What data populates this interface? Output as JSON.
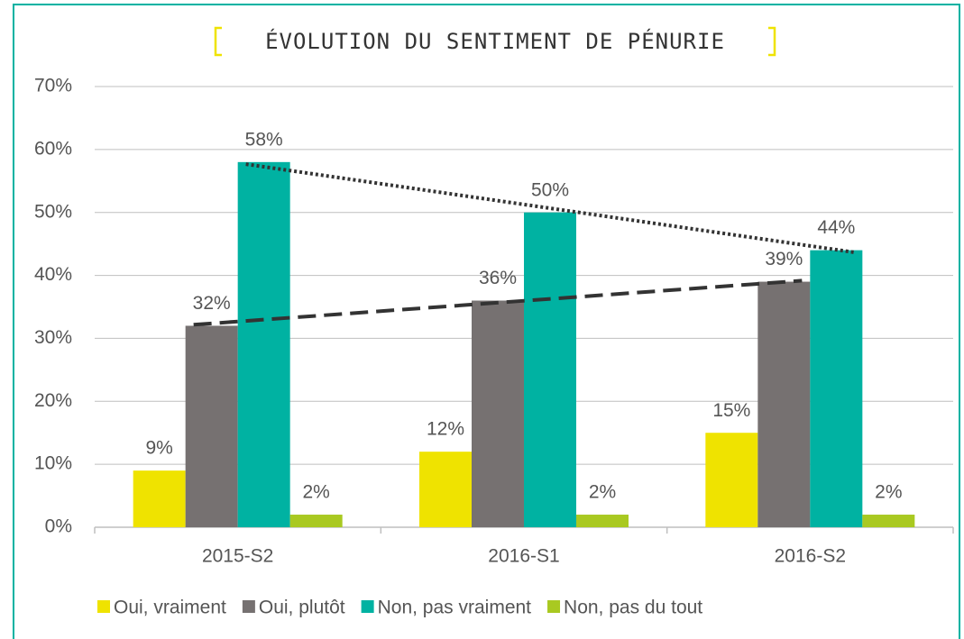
{
  "chart_data": {
    "type": "bar",
    "title": "ÉVOLUTION DU SENTIMENT DE PÉNURIE",
    "categories": [
      "2015-S2",
      "2016-S1",
      "2016-S2"
    ],
    "series": [
      {
        "name": "Oui, vraiment",
        "color": "#efe300",
        "values": [
          9,
          12,
          15
        ],
        "value_labels": [
          "9%",
          "12%",
          "15%"
        ]
      },
      {
        "name": "Oui, plutôt",
        "color": "#767171",
        "values": [
          32,
          36,
          39
        ],
        "value_labels": [
          "32%",
          "36%",
          "39%"
        ],
        "trendline": "dashed"
      },
      {
        "name": "Non, pas vraiment",
        "color": "#00b2a2",
        "values": [
          58,
          50,
          44
        ],
        "value_labels": [
          "58%",
          "50%",
          "44%"
        ],
        "trendline": "dotted"
      },
      {
        "name": "Non, pas du tout",
        "color": "#a9c921",
        "values": [
          2,
          2,
          2
        ],
        "value_labels": [
          "2%",
          "2%",
          "2%"
        ]
      }
    ],
    "ylim": [
      0,
      70
    ],
    "yticks": [
      {
        "value": 0,
        "label": "0%"
      },
      {
        "value": 10,
        "label": "10%"
      },
      {
        "value": 20,
        "label": "20%"
      },
      {
        "value": 30,
        "label": "30%"
      },
      {
        "value": 40,
        "label": "40%"
      },
      {
        "value": 50,
        "label": "50%"
      },
      {
        "value": 60,
        "label": "60%"
      },
      {
        "value": 70,
        "label": "70%"
      }
    ],
    "grid": true,
    "legend": "bottom"
  }
}
